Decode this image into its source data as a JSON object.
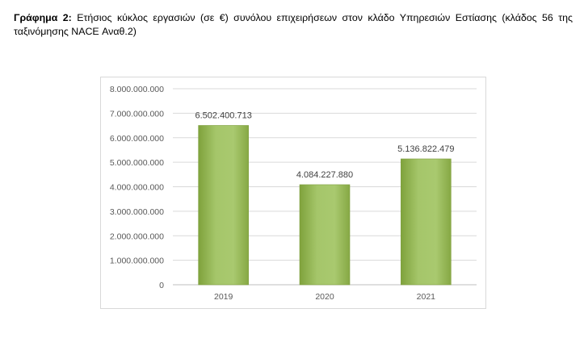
{
  "caption": {
    "label": "Γράφημα 2:",
    "text": "Ετήσιος κύκλος εργασιών (σε €) συνόλου επιχειρήσεων στον κλάδο Υπηρεσιών Εστίασης (κλάδος 56 της ταξινόμησης NACE Αναθ.2)"
  },
  "chart_data": {
    "type": "bar",
    "categories": [
      "2019",
      "2020",
      "2021"
    ],
    "values": [
      6502400713,
      4084227880,
      5136822479
    ],
    "data_labels": [
      "6.502.400.713",
      "4.084.227.880",
      "5.136.822.479"
    ],
    "yticks": [
      0,
      1000000000,
      2000000000,
      3000000000,
      4000000000,
      5000000000,
      6000000000,
      7000000000,
      8000000000
    ],
    "ytick_labels": [
      "0",
      "1.000.000.000",
      "2.000.000.000",
      "3.000.000.000",
      "4.000.000.000",
      "5.000.000.000",
      "6.000.000.000",
      "7.000.000.000",
      "8.000.000.000"
    ],
    "ylim": [
      0,
      8000000000
    ],
    "grid": true,
    "legend": "none",
    "bar_color": "#9bbb59"
  }
}
